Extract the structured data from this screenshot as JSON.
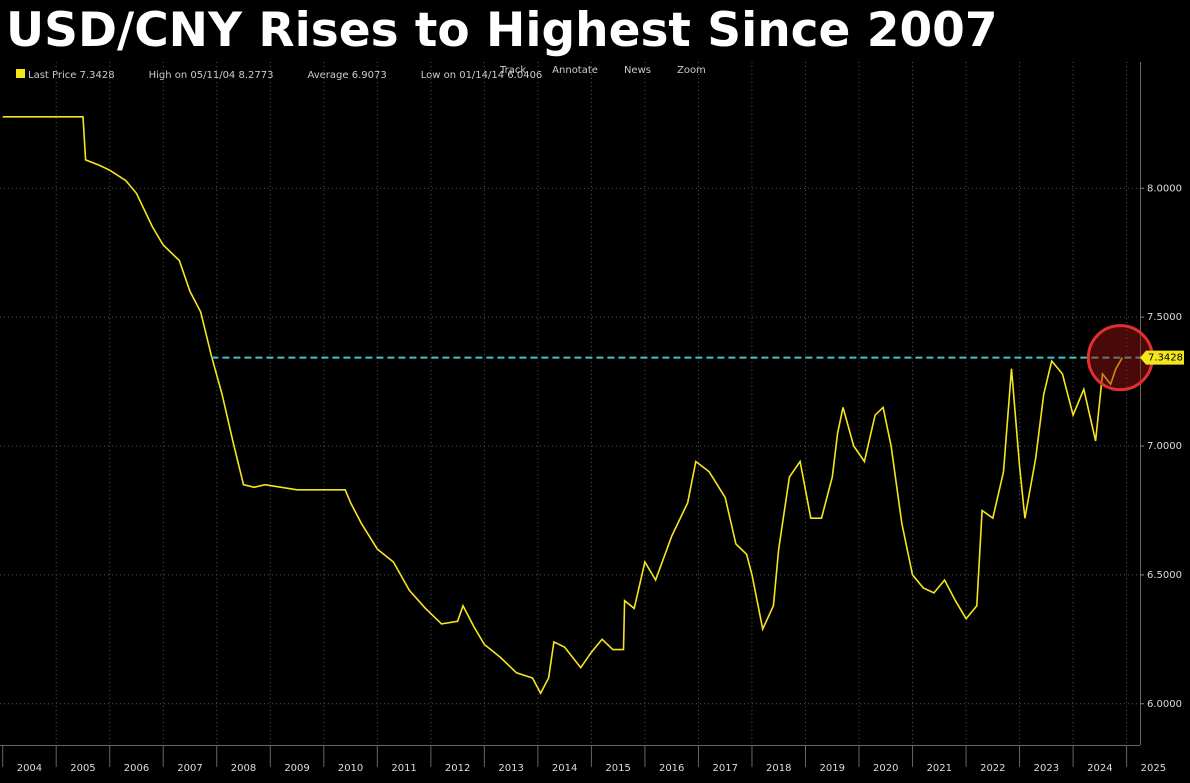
{
  "chart_data": {
    "type": "line",
    "title": "USD/CNY Rises to Highest Since 2007",
    "legend": [
      "Last Price 7.3428",
      "High on 05/11/04 8.2773",
      "Average 6.9073",
      "Low on 01/14/14 6.0406"
    ],
    "toolbar": [
      "Track",
      "Annotate",
      "News",
      "Zoom"
    ],
    "x": [
      2004.0,
      2005.5,
      2005.55,
      2005.8,
      2006.0,
      2006.3,
      2006.5,
      2006.8,
      2007.0,
      2007.3,
      2007.5,
      2007.7,
      2007.9,
      2008.1,
      2008.3,
      2008.5,
      2008.7,
      2008.9,
      2009.5,
      2010.0,
      2010.4,
      2010.5,
      2010.7,
      2011.0,
      2011.3,
      2011.6,
      2011.9,
      2012.2,
      2012.5,
      2012.6,
      2012.8,
      2013.0,
      2013.3,
      2013.6,
      2013.9,
      2014.05,
      2014.2,
      2014.3,
      2014.5,
      2014.8,
      2015.0,
      2015.2,
      2015.4,
      2015.6,
      2015.62,
      2015.8,
      2016.0,
      2016.2,
      2016.5,
      2016.8,
      2016.95,
      2017.2,
      2017.5,
      2017.7,
      2017.9,
      2018.0,
      2018.2,
      2018.4,
      2018.5,
      2018.7,
      2018.9,
      2019.1,
      2019.3,
      2019.5,
      2019.6,
      2019.7,
      2019.9,
      2020.1,
      2020.3,
      2020.45,
      2020.6,
      2020.8,
      2021.0,
      2021.2,
      2021.4,
      2021.6,
      2021.8,
      2022.0,
      2022.2,
      2022.3,
      2022.5,
      2022.7,
      2022.85,
      2023.0,
      2023.1,
      2023.3,
      2023.45,
      2023.6,
      2023.8,
      2024.0,
      2024.2,
      2024.42,
      2024.55,
      2024.7,
      2024.8,
      2024.92
    ],
    "series": [
      {
        "name": "USD/CNY",
        "color": "#f5e61c",
        "values": [
          8.2773,
          8.2773,
          8.11,
          8.09,
          8.07,
          8.03,
          7.98,
          7.85,
          7.78,
          7.72,
          7.6,
          7.52,
          7.35,
          7.2,
          7.02,
          6.85,
          6.84,
          6.85,
          6.83,
          6.83,
          6.83,
          6.78,
          6.7,
          6.6,
          6.55,
          6.44,
          6.37,
          6.31,
          6.32,
          6.38,
          6.3,
          6.23,
          6.18,
          6.12,
          6.1,
          6.0406,
          6.1,
          6.24,
          6.22,
          6.14,
          6.2,
          6.25,
          6.21,
          6.21,
          6.4,
          6.37,
          6.55,
          6.48,
          6.65,
          6.78,
          6.94,
          6.9,
          6.8,
          6.62,
          6.58,
          6.5,
          6.29,
          6.38,
          6.6,
          6.88,
          6.94,
          6.72,
          6.72,
          6.88,
          7.05,
          7.15,
          7.0,
          6.94,
          7.12,
          7.15,
          7.0,
          6.7,
          6.5,
          6.45,
          6.43,
          6.48,
          6.4,
          6.33,
          6.38,
          6.75,
          6.72,
          6.9,
          7.3,
          6.92,
          6.72,
          6.95,
          7.2,
          7.33,
          7.28,
          7.12,
          7.22,
          7.02,
          7.28,
          7.24,
          7.3,
          7.3428
        ]
      }
    ],
    "xlim": [
      2003.95,
      2025.25
    ],
    "xticks": [
      {
        "value": 2004,
        "label": "2004"
      },
      {
        "value": 2005,
        "label": "2005"
      },
      {
        "value": 2006,
        "label": "2006"
      },
      {
        "value": 2007,
        "label": "2007"
      },
      {
        "value": 2008,
        "label": "2008"
      },
      {
        "value": 2009,
        "label": "2009"
      },
      {
        "value": 2010,
        "label": "2010"
      },
      {
        "value": 2011,
        "label": "2011"
      },
      {
        "value": 2012,
        "label": "2012"
      },
      {
        "value": 2013,
        "label": "2013"
      },
      {
        "value": 2014,
        "label": "2014"
      },
      {
        "value": 2015,
        "label": "2015"
      },
      {
        "value": 2016,
        "label": "2016"
      },
      {
        "value": 2017,
        "label": "2017"
      },
      {
        "value": 2018,
        "label": "2018"
      },
      {
        "value": 2019,
        "label": "2019"
      },
      {
        "value": 2020,
        "label": "2020"
      },
      {
        "value": 2021,
        "label": "2021"
      },
      {
        "value": 2022,
        "label": "2022"
      },
      {
        "value": 2023,
        "label": "2023"
      },
      {
        "value": 2024,
        "label": "2024"
      },
      {
        "value": 2025,
        "label": "2025"
      }
    ],
    "ylim": [
      5.84,
      8.49
    ],
    "yticks": [
      {
        "value": 6,
        "label": "6.0000"
      },
      {
        "value": 6.5,
        "label": "6.5000"
      },
      {
        "value": 7,
        "label": "7.0000"
      },
      {
        "value": 7.5,
        "label": "7.5000"
      },
      {
        "value": 8,
        "label": "8.0000"
      }
    ],
    "grid": true,
    "last_line_color": "#3fc6c6"
  }
}
